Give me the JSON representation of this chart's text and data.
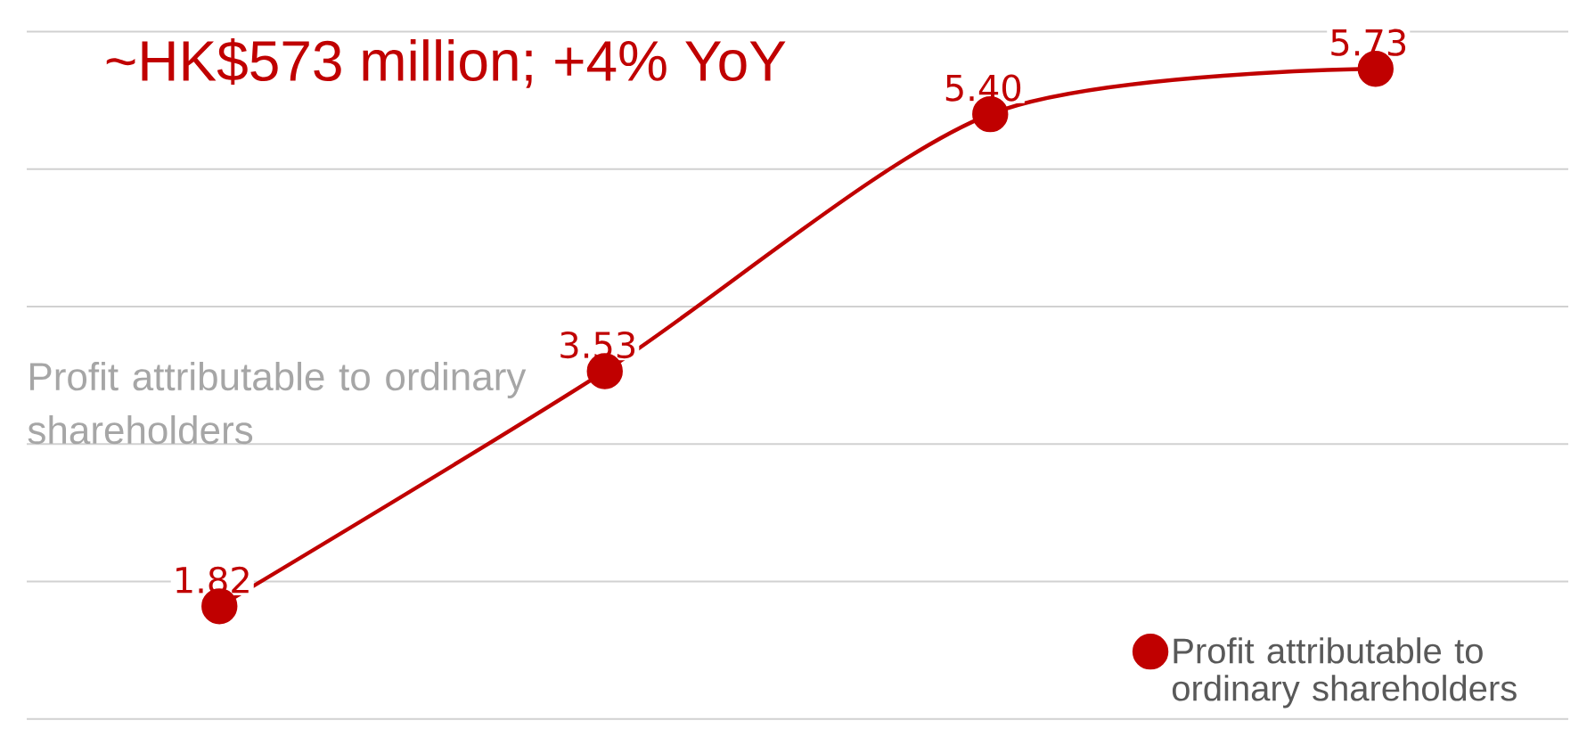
{
  "chart_data": {
    "type": "line",
    "categories": [
      null,
      null,
      null,
      null
    ],
    "series": [
      {
        "name": "Profit attributable to ordinary shareholders",
        "color": "#c00000",
        "values": [
          1.82,
          3.53,
          5.4,
          5.73
        ],
        "value_labels": [
          "1.82",
          "3.53",
          "5.40",
          "5.73"
        ]
      }
    ],
    "grid": "y",
    "legend": "bottom right",
    "marker": "circle",
    "line_style": "solid",
    "annotations": [
      "~HK$573 million; +4% YoY",
      "Profit attributable to ordinary shareholders"
    ]
  }
}
